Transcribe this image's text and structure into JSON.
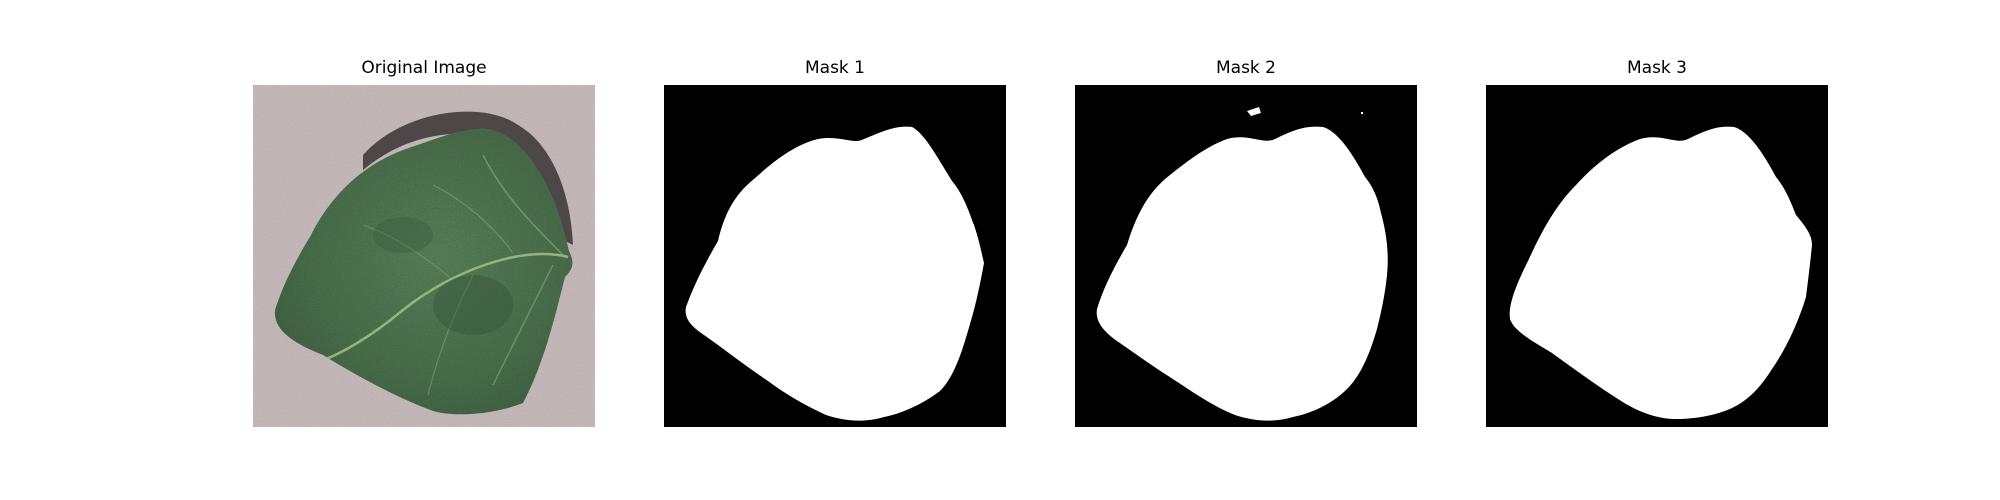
{
  "panels": [
    {
      "title": "Original Image"
    },
    {
      "title": "Mask 1"
    },
    {
      "title": "Mask 2"
    },
    {
      "title": "Mask 3"
    }
  ],
  "colors": {
    "background": "#ffffff",
    "mask_background": "#000000",
    "mask_foreground": "#ffffff",
    "leaf_green": "#4a6e4a",
    "surface_gray": "#c9bcbd"
  }
}
